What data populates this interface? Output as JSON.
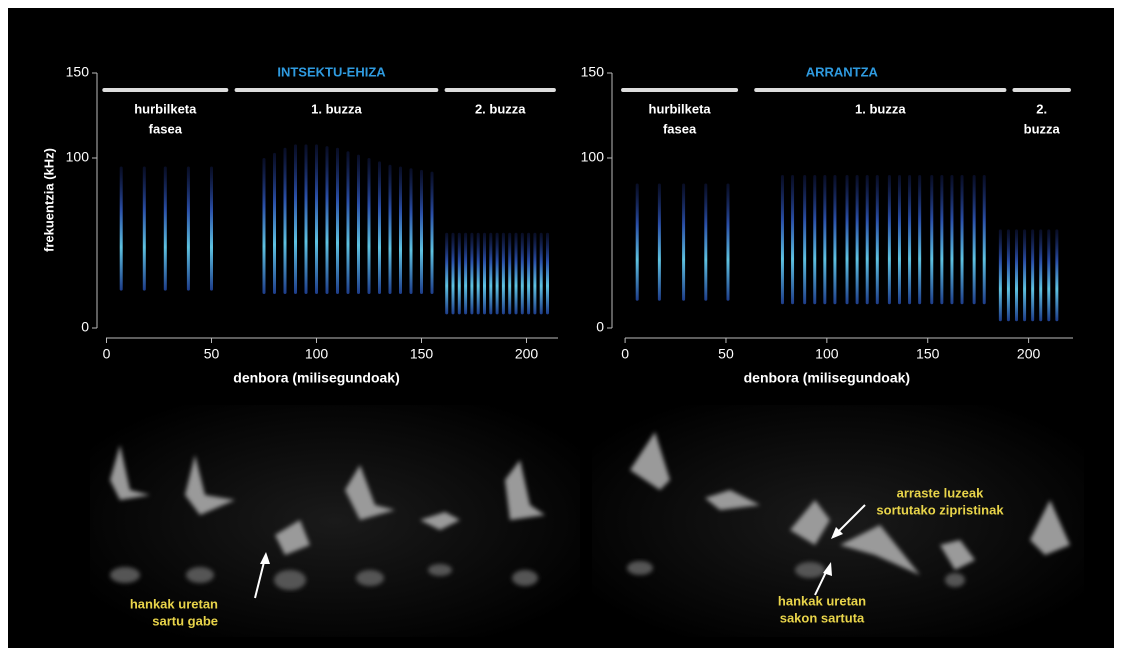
{
  "chart_data": [
    {
      "type": "spectrogram",
      "title": "INTSEKTU-EHIZA",
      "title_color": "#2f9be0",
      "xlabel": "denbora (milisegundoak)",
      "ylabel": "frekuentzia (kHz)",
      "xlim": [
        -5,
        215
      ],
      "ylim": [
        0,
        150
      ],
      "xticks": [
        0,
        50,
        100,
        150,
        200
      ],
      "yticks": [
        0,
        100,
        150
      ],
      "segments": [
        {
          "lines": [
            "hurbilketa",
            "fasea"
          ],
          "start": -2,
          "end": 58
        },
        {
          "lines": [
            "1. buzza"
          ],
          "start": 61,
          "end": 158
        },
        {
          "lines": [
            "2. buzza"
          ],
          "start": 161,
          "end": 214
        }
      ],
      "pulses": {
        "t": [
          7,
          18,
          28,
          39,
          50,
          75,
          80,
          85,
          90,
          95,
          100,
          105,
          110,
          115,
          120,
          125,
          130,
          135,
          140,
          145,
          150,
          155,
          162,
          165,
          168,
          171,
          174,
          177,
          180,
          183,
          186,
          189,
          192,
          195,
          198,
          201,
          204,
          207,
          210
        ],
        "fmin": [
          22,
          22,
          22,
          22,
          22,
          20,
          20,
          20,
          20,
          20,
          20,
          20,
          20,
          20,
          20,
          20,
          20,
          20,
          20,
          20,
          20,
          20,
          8,
          8,
          8,
          8,
          8,
          8,
          8,
          8,
          8,
          8,
          8,
          8,
          8,
          8,
          8,
          8,
          8
        ],
        "fmax": [
          95,
          95,
          95,
          95,
          95,
          100,
          103,
          106,
          108,
          108,
          108,
          107,
          106,
          104,
          102,
          100,
          98,
          96,
          95,
          94,
          93,
          92,
          56,
          56,
          56,
          56,
          56,
          56,
          56,
          56,
          56,
          56,
          56,
          56,
          56,
          56,
          56,
          56,
          56
        ]
      }
    },
    {
      "type": "spectrogram",
      "title": "ARRANTZA",
      "title_color": "#2f9be0",
      "xlabel": "denbora (milisegundoak)",
      "xlim": [
        -5,
        222
      ],
      "ylim": [
        0,
        150
      ],
      "xticks": [
        0,
        50,
        100,
        150,
        200
      ],
      "yticks": [
        0,
        100,
        150
      ],
      "segments": [
        {
          "lines": [
            "hurbilketa",
            "fasea"
          ],
          "start": -2,
          "end": 56
        },
        {
          "lines": [
            "1. buzza"
          ],
          "start": 64,
          "end": 189
        },
        {
          "lines": [
            "2.",
            "buzza"
          ],
          "start": 192,
          "end": 221
        }
      ],
      "pulses": {
        "t": [
          6,
          17,
          29,
          40,
          51,
          78,
          83,
          89,
          94,
          99,
          104,
          110,
          115,
          120,
          125,
          131,
          136,
          141,
          146,
          152,
          157,
          162,
          167,
          173,
          178,
          186,
          190,
          194,
          198,
          202,
          206,
          210,
          214
        ],
        "fmin": [
          16,
          16,
          16,
          16,
          16,
          14,
          14,
          14,
          14,
          14,
          14,
          14,
          14,
          14,
          14,
          14,
          14,
          14,
          14,
          14,
          14,
          14,
          14,
          14,
          14,
          4,
          4,
          4,
          4,
          4,
          4,
          4,
          4
        ],
        "fmax": [
          85,
          85,
          85,
          85,
          85,
          90,
          90,
          90,
          90,
          90,
          90,
          90,
          90,
          90,
          90,
          90,
          90,
          90,
          90,
          90,
          90,
          90,
          90,
          90,
          90,
          58,
          58,
          58,
          58,
          58,
          58,
          58,
          58
        ]
      }
    }
  ],
  "photos": [
    {
      "annotations": [
        {
          "lines": [
            "hankak uretan",
            "sartu gabe"
          ]
        }
      ]
    },
    {
      "annotations": [
        {
          "lines": [
            "arraste luzeak",
            "sortutako zipristinak"
          ]
        },
        {
          "lines": [
            "hankak uretan",
            "sakon sartuta"
          ]
        }
      ]
    }
  ]
}
